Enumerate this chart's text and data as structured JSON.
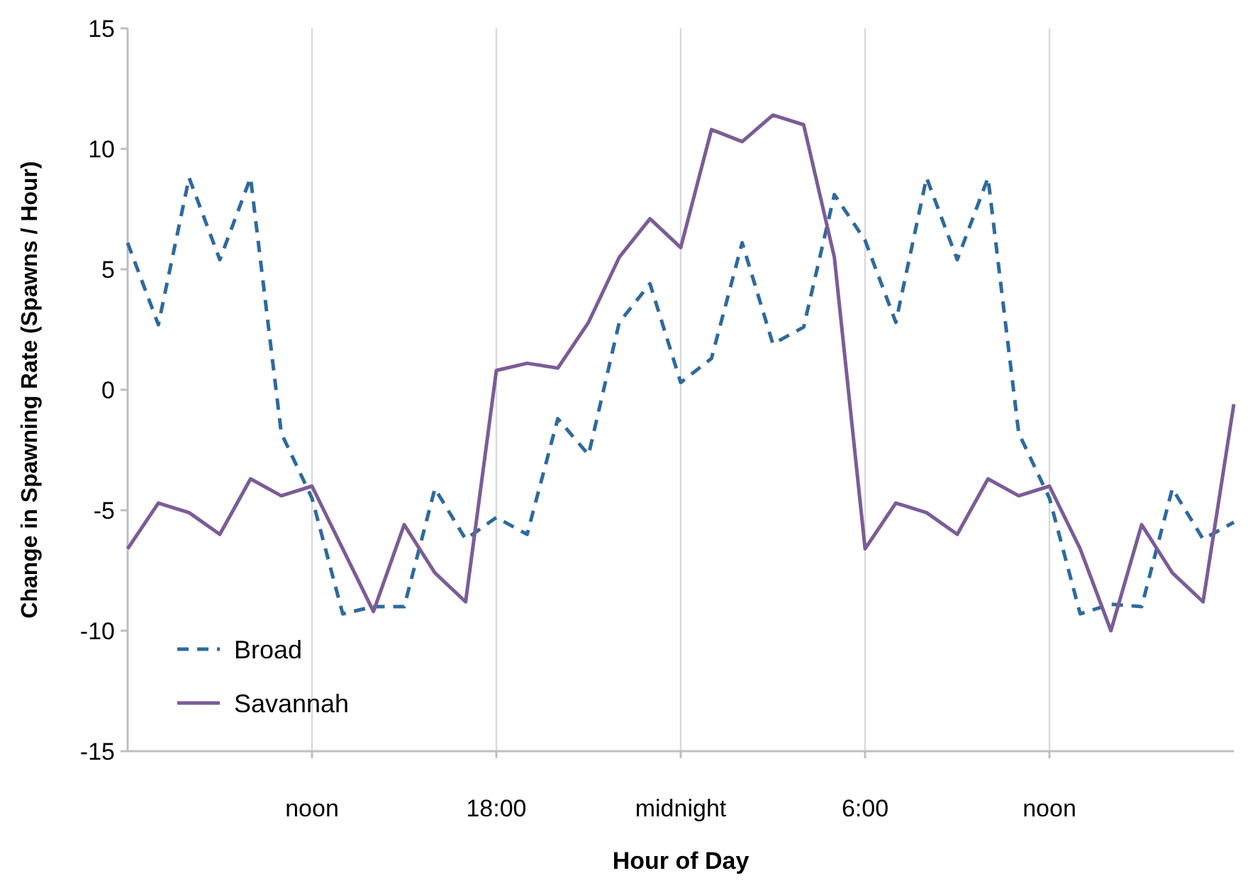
{
  "chart_data": {
    "type": "line",
    "xlabel": "Hour of Day",
    "ylabel": "Change in Spawning Rate (Spawns / Hour)",
    "categories": [
      null,
      null,
      null,
      null,
      null,
      null,
      "noon",
      null,
      null,
      null,
      null,
      null,
      "18:00",
      null,
      null,
      null,
      null,
      null,
      "midnight",
      null,
      null,
      null,
      null,
      null,
      "6:00",
      null,
      null,
      null,
      null,
      null,
      "noon",
      null,
      null,
      null,
      null,
      null,
      null
    ],
    "series": [
      {
        "name": "Broad",
        "color": "#2e6a9e",
        "line_style": "dashed",
        "values": [
          6.1,
          2.7,
          8.8,
          5.4,
          8.8,
          -1.8,
          -4.5,
          -9.3,
          -9.0,
          -9.0,
          -4.1,
          -6.2,
          -5.3,
          -6.0,
          -1.2,
          -2.7,
          2.8,
          4.4,
          0.3,
          1.3,
          6.1,
          1.9,
          2.6,
          8.1,
          6.2,
          2.8,
          8.8,
          5.4,
          8.8,
          -1.8,
          -4.5,
          -9.3,
          -8.9,
          -9.0,
          -4.1,
          -6.2,
          -5.5
        ]
      },
      {
        "name": "Savannah",
        "color": "#7b5c97",
        "line_style": "solid",
        "values": [
          -6.6,
          -4.7,
          -5.1,
          -6.0,
          -3.7,
          -4.4,
          -4.0,
          -6.6,
          -9.2,
          -5.6,
          -7.6,
          -8.8,
          0.8,
          1.1,
          0.9,
          2.8,
          5.5,
          7.1,
          5.9,
          10.8,
          10.3,
          11.4,
          11.0,
          5.5,
          -6.6,
          -4.7,
          -5.1,
          -6.0,
          -3.7,
          -4.4,
          -4.0,
          -6.6,
          -10.0,
          -5.6,
          -7.6,
          -8.8,
          -0.6
        ]
      }
    ],
    "ylim": [
      -15,
      15
    ],
    "yticks": [
      -15,
      -10,
      -5,
      0,
      5,
      10,
      15
    ],
    "grid": "x",
    "legend": "bottom left",
    "marker": "none"
  }
}
